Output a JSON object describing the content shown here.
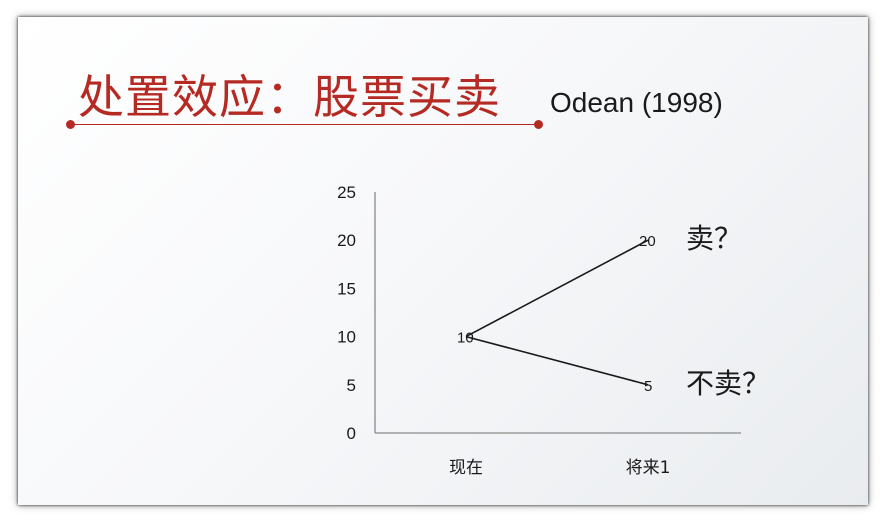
{
  "slide": {
    "title": "处置效应：股票买卖",
    "citation": "Odean (1998)"
  },
  "chart_data": {
    "type": "line",
    "categories": [
      "现在",
      "将来1"
    ],
    "series": [
      {
        "values": [
          10,
          20
        ]
      },
      {
        "values": [
          10,
          5
        ]
      }
    ],
    "data_labels": [
      "10",
      "20",
      "5"
    ],
    "annotations": [
      "卖？",
      "不卖？"
    ],
    "ylim": [
      0,
      25
    ],
    "yticks": [
      0,
      5,
      10,
      15,
      20,
      25
    ],
    "grid": false,
    "colors": {
      "line": "#1a1a1a",
      "axis": "#8a8a8a",
      "title": "#b52a22"
    }
  }
}
